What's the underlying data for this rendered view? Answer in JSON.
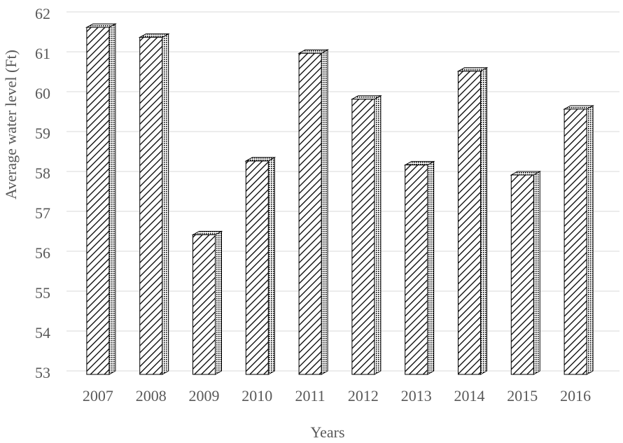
{
  "chart_data": {
    "type": "bar",
    "y_label": "Average water level (Ft)",
    "x_label": "Years",
    "categories": [
      "2007",
      "2008",
      "2009",
      "2010",
      "2011",
      "2012",
      "2013",
      "2014",
      "2015",
      "2016"
    ],
    "values": [
      61.7,
      61.45,
      56.5,
      58.35,
      61.05,
      59.9,
      58.25,
      60.6,
      58.0,
      59.65
    ],
    "color": "#000000",
    "ylim": [
      53,
      62
    ],
    "yticks": [
      53,
      54,
      55,
      56,
      57,
      58,
      59,
      60,
      61,
      62
    ],
    "grid": true
  }
}
